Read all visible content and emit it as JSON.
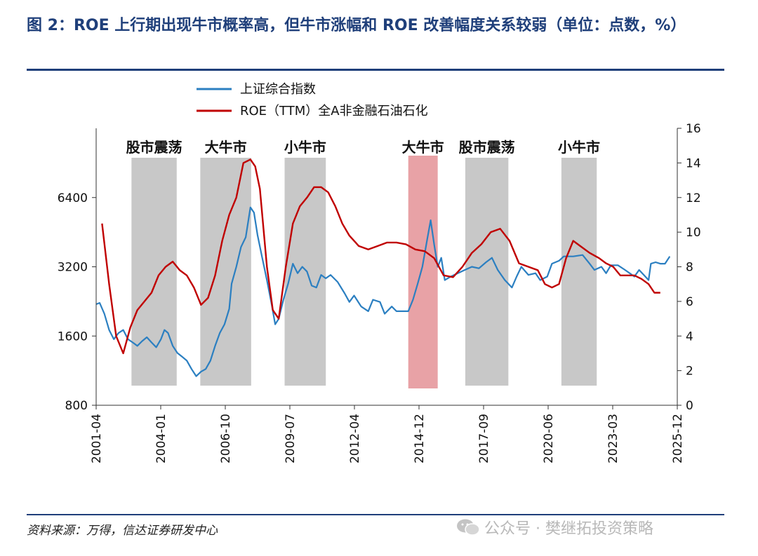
{
  "header": {
    "title": "图 2：ROE 上行期出现牛市概率高，但牛市涨幅和 ROE 改善幅度关系较弱（单位：点数，%）"
  },
  "footer": {
    "source": "资料来源：万得，信达证券研发中心",
    "watermark": "公众号 · 樊继拓投资策略"
  },
  "colors": {
    "index_line": "#2b7fc1",
    "roe_line": "#c00000",
    "gray_band": "#c8c8c8",
    "red_band": "#e8a2a6",
    "title": "#1f3f7a"
  },
  "chart_data": {
    "type": "line",
    "x_tick_labels": [
      "2001-04",
      "2004-01",
      "2006-10",
      "2009-07",
      "2012-04",
      "2014-12",
      "2017-09",
      "2020-06",
      "2023-03",
      "2025-12"
    ],
    "legend_position": "top-left",
    "grid": false,
    "y_left": {
      "scale": "log",
      "range": [
        800,
        12800
      ],
      "ticks": [
        800,
        1600,
        3200,
        6400
      ]
    },
    "y_right": {
      "range": [
        0,
        16
      ],
      "ticks": [
        0,
        2,
        4,
        6,
        8,
        10,
        12,
        14,
        16
      ],
      "label": "rhs"
    },
    "regimes": [
      {
        "label": "股市震荡",
        "start": 2002.75,
        "end": 2004.67,
        "color": "gray"
      },
      {
        "label": "大牛市",
        "start": 2005.67,
        "end": 2007.83,
        "color": "gray"
      },
      {
        "label": "小牛市",
        "start": 2009.25,
        "end": 2011.0,
        "color": "gray"
      },
      {
        "label": "大牛市",
        "start": 2014.5,
        "end": 2015.75,
        "color": "red"
      },
      {
        "label": "股市震荡",
        "start": 2016.92,
        "end": 2018.75,
        "color": "gray"
      },
      {
        "label": "小牛市",
        "start": 2021.0,
        "end": 2022.5,
        "color": "gray"
      }
    ],
    "series": [
      {
        "name": "上证综合指数",
        "axis": "left",
        "points": [
          [
            2001.25,
            2200
          ],
          [
            2001.4,
            2230
          ],
          [
            2001.6,
            2000
          ],
          [
            2001.8,
            1700
          ],
          [
            2002.0,
            1550
          ],
          [
            2002.2,
            1650
          ],
          [
            2002.4,
            1700
          ],
          [
            2002.6,
            1550
          ],
          [
            2002.8,
            1500
          ],
          [
            2003.0,
            1450
          ],
          [
            2003.2,
            1520
          ],
          [
            2003.4,
            1580
          ],
          [
            2003.6,
            1500
          ],
          [
            2003.8,
            1430
          ],
          [
            2004.0,
            1550
          ],
          [
            2004.15,
            1700
          ],
          [
            2004.3,
            1650
          ],
          [
            2004.5,
            1450
          ],
          [
            2004.7,
            1350
          ],
          [
            2004.9,
            1300
          ],
          [
            2005.1,
            1250
          ],
          [
            2005.3,
            1150
          ],
          [
            2005.5,
            1070
          ],
          [
            2005.7,
            1120
          ],
          [
            2005.9,
            1150
          ],
          [
            2006.1,
            1250
          ],
          [
            2006.3,
            1450
          ],
          [
            2006.5,
            1650
          ],
          [
            2006.7,
            1800
          ],
          [
            2006.9,
            2100
          ],
          [
            2007.0,
            2700
          ],
          [
            2007.2,
            3200
          ],
          [
            2007.4,
            3900
          ],
          [
            2007.6,
            4300
          ],
          [
            2007.8,
            5800
          ],
          [
            2007.95,
            5500
          ],
          [
            2008.1,
            4400
          ],
          [
            2008.3,
            3500
          ],
          [
            2008.5,
            2800
          ],
          [
            2008.7,
            2200
          ],
          [
            2008.85,
            1800
          ],
          [
            2009.0,
            1900
          ],
          [
            2009.2,
            2300
          ],
          [
            2009.4,
            2700
          ],
          [
            2009.6,
            3300
          ],
          [
            2009.8,
            3000
          ],
          [
            2010.0,
            3200
          ],
          [
            2010.2,
            3050
          ],
          [
            2010.4,
            2650
          ],
          [
            2010.6,
            2600
          ],
          [
            2010.8,
            2950
          ],
          [
            2011.0,
            2850
          ],
          [
            2011.2,
            2950
          ],
          [
            2011.5,
            2750
          ],
          [
            2011.8,
            2450
          ],
          [
            2012.0,
            2250
          ],
          [
            2012.2,
            2400
          ],
          [
            2012.5,
            2150
          ],
          [
            2012.8,
            2050
          ],
          [
            2013.0,
            2300
          ],
          [
            2013.3,
            2250
          ],
          [
            2013.5,
            2000
          ],
          [
            2013.8,
            2150
          ],
          [
            2014.0,
            2050
          ],
          [
            2014.3,
            2050
          ],
          [
            2014.5,
            2050
          ],
          [
            2014.7,
            2300
          ],
          [
            2014.9,
            2700
          ],
          [
            2015.1,
            3200
          ],
          [
            2015.3,
            4200
          ],
          [
            2015.45,
            5100
          ],
          [
            2015.6,
            4000
          ],
          [
            2015.75,
            3200
          ],
          [
            2015.9,
            3500
          ],
          [
            2016.05,
            2800
          ],
          [
            2016.3,
            2900
          ],
          [
            2016.6,
            3000
          ],
          [
            2016.9,
            3100
          ],
          [
            2017.2,
            3200
          ],
          [
            2017.5,
            3150
          ],
          [
            2017.8,
            3350
          ],
          [
            2018.05,
            3500
          ],
          [
            2018.3,
            3100
          ],
          [
            2018.6,
            2800
          ],
          [
            2018.9,
            2600
          ],
          [
            2019.1,
            2900
          ],
          [
            2019.3,
            3200
          ],
          [
            2019.6,
            2950
          ],
          [
            2019.9,
            3000
          ],
          [
            2020.1,
            2800
          ],
          [
            2020.4,
            2900
          ],
          [
            2020.6,
            3300
          ],
          [
            2020.9,
            3400
          ],
          [
            2021.1,
            3550
          ],
          [
            2021.5,
            3550
          ],
          [
            2021.9,
            3600
          ],
          [
            2022.2,
            3300
          ],
          [
            2022.4,
            3100
          ],
          [
            2022.7,
            3200
          ],
          [
            2022.9,
            3000
          ],
          [
            2023.1,
            3250
          ],
          [
            2023.4,
            3250
          ],
          [
            2023.7,
            3100
          ],
          [
            2023.9,
            3000
          ],
          [
            2024.1,
            2900
          ],
          [
            2024.3,
            3100
          ],
          [
            2024.5,
            2950
          ],
          [
            2024.7,
            2800
          ],
          [
            2024.8,
            3300
          ],
          [
            2025.0,
            3350
          ],
          [
            2025.2,
            3300
          ],
          [
            2025.4,
            3300
          ],
          [
            2025.6,
            3550
          ]
        ]
      },
      {
        "name": "ROE（TTM）全A非金融石油石化",
        "axis": "right",
        "points": [
          [
            2001.5,
            10.5
          ],
          [
            2001.8,
            7.0
          ],
          [
            2002.1,
            4.0
          ],
          [
            2002.4,
            3.0
          ],
          [
            2002.7,
            4.5
          ],
          [
            2003.0,
            5.5
          ],
          [
            2003.3,
            6.0
          ],
          [
            2003.6,
            6.5
          ],
          [
            2003.9,
            7.5
          ],
          [
            2004.2,
            8.0
          ],
          [
            2004.5,
            8.3
          ],
          [
            2004.8,
            7.8
          ],
          [
            2005.1,
            7.5
          ],
          [
            2005.4,
            6.8
          ],
          [
            2005.7,
            5.8
          ],
          [
            2006.0,
            6.2
          ],
          [
            2006.3,
            7.5
          ],
          [
            2006.6,
            9.5
          ],
          [
            2006.9,
            11.0
          ],
          [
            2007.2,
            12.0
          ],
          [
            2007.5,
            14.0
          ],
          [
            2007.8,
            14.2
          ],
          [
            2008.0,
            13.8
          ],
          [
            2008.2,
            12.5
          ],
          [
            2008.5,
            8.0
          ],
          [
            2008.75,
            5.5
          ],
          [
            2009.0,
            5.0
          ],
          [
            2009.3,
            8.0
          ],
          [
            2009.6,
            10.5
          ],
          [
            2009.9,
            11.5
          ],
          [
            2010.2,
            12.0
          ],
          [
            2010.5,
            12.6
          ],
          [
            2010.8,
            12.6
          ],
          [
            2011.1,
            12.3
          ],
          [
            2011.4,
            11.5
          ],
          [
            2011.7,
            10.5
          ],
          [
            2012.0,
            9.8
          ],
          [
            2012.4,
            9.2
          ],
          [
            2012.8,
            9.0
          ],
          [
            2013.2,
            9.2
          ],
          [
            2013.6,
            9.4
          ],
          [
            2014.0,
            9.4
          ],
          [
            2014.4,
            9.3
          ],
          [
            2014.8,
            9.0
          ],
          [
            2015.2,
            8.9
          ],
          [
            2015.6,
            8.5
          ],
          [
            2016.0,
            7.5
          ],
          [
            2016.4,
            7.4
          ],
          [
            2016.8,
            8.0
          ],
          [
            2017.2,
            8.8
          ],
          [
            2017.6,
            9.3
          ],
          [
            2018.0,
            10.0
          ],
          [
            2018.4,
            10.2
          ],
          [
            2018.8,
            9.5
          ],
          [
            2019.2,
            8.2
          ],
          [
            2019.6,
            8.0
          ],
          [
            2020.0,
            7.8
          ],
          [
            2020.3,
            7.0
          ],
          [
            2020.6,
            6.8
          ],
          [
            2020.9,
            7.0
          ],
          [
            2021.2,
            8.5
          ],
          [
            2021.5,
            9.5
          ],
          [
            2021.8,
            9.2
          ],
          [
            2022.2,
            8.8
          ],
          [
            2022.6,
            8.5
          ],
          [
            2022.9,
            8.2
          ],
          [
            2023.2,
            8.0
          ],
          [
            2023.5,
            7.5
          ],
          [
            2023.8,
            7.5
          ],
          [
            2024.1,
            7.5
          ],
          [
            2024.4,
            7.3
          ],
          [
            2024.7,
            7.0
          ],
          [
            2024.95,
            6.5
          ],
          [
            2025.2,
            6.5
          ]
        ]
      }
    ]
  }
}
